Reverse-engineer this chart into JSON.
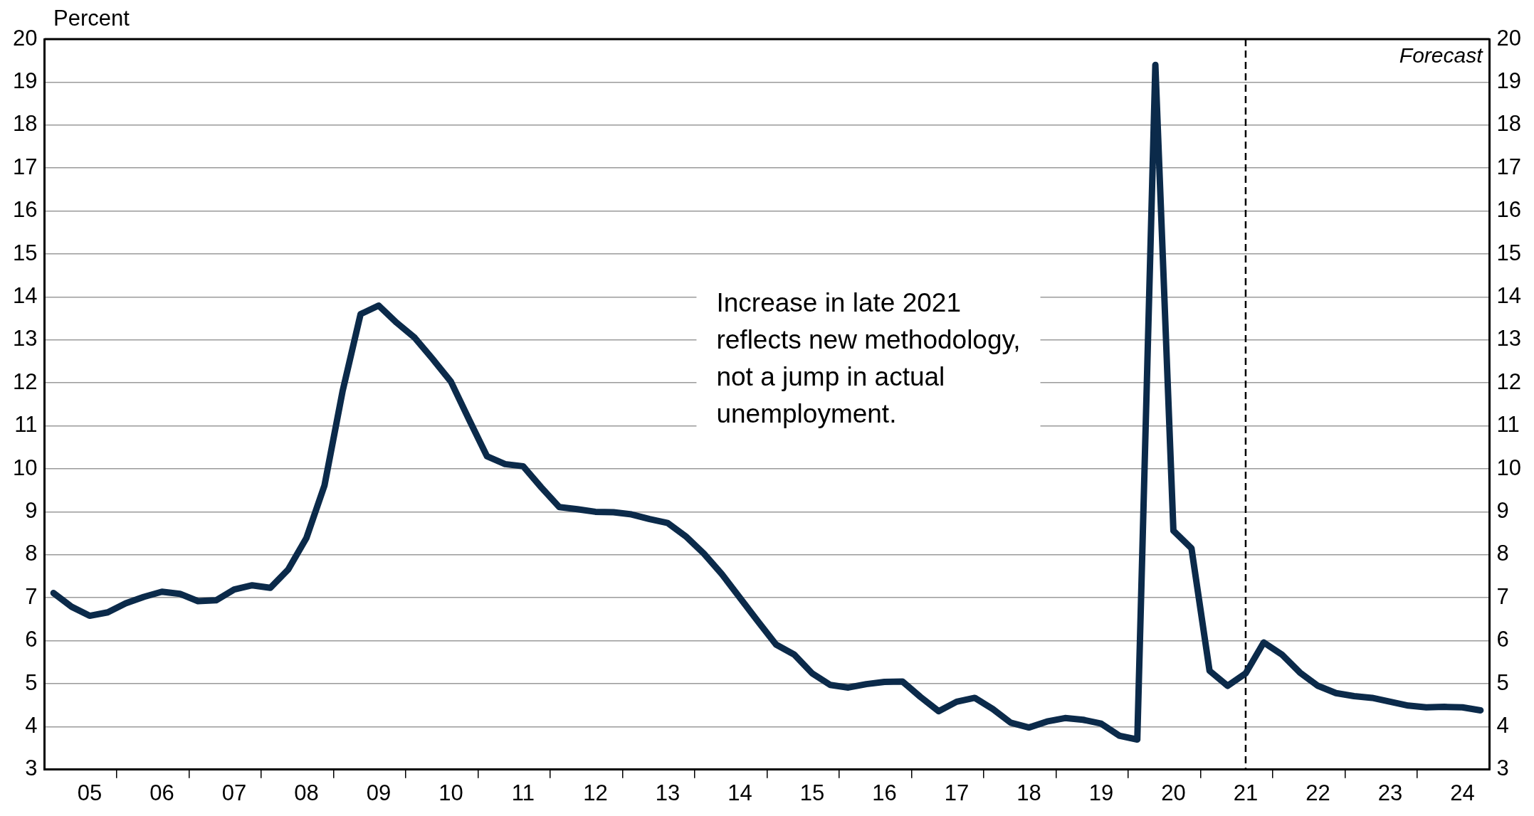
{
  "chart_data": {
    "type": "line",
    "ylabel": "Percent",
    "categories": [
      null,
      null,
      "05",
      null,
      null,
      null,
      "06",
      null,
      null,
      null,
      "07",
      null,
      null,
      null,
      "08",
      null,
      null,
      null,
      "09",
      null,
      null,
      null,
      "10",
      null,
      null,
      null,
      "11",
      null,
      null,
      null,
      "12",
      null,
      null,
      null,
      "13",
      null,
      null,
      null,
      "14",
      null,
      null,
      null,
      "15",
      null,
      null,
      null,
      "16",
      null,
      null,
      null,
      "17",
      null,
      null,
      null,
      "18",
      null,
      null,
      null,
      "19",
      null,
      null,
      null,
      "20",
      null,
      null,
      null,
      "21",
      null,
      null,
      null,
      "22",
      null,
      null,
      null,
      "23",
      null,
      null,
      null,
      "24",
      null
    ],
    "series": [
      {
        "color": "#0b2a4a",
        "values": [
          7.11,
          6.79,
          6.58,
          6.66,
          6.87,
          7.02,
          7.14,
          7.09,
          6.92,
          6.94,
          7.19,
          7.29,
          7.23,
          7.66,
          8.39,
          9.61,
          11.8,
          13.6,
          13.8,
          13.4,
          13.05,
          12.55,
          12.03,
          11.15,
          10.29,
          10.11,
          10.06,
          9.57,
          9.11,
          9.06,
          9.0,
          8.99,
          8.94,
          8.83,
          8.74,
          8.43,
          8.03,
          7.55,
          7.0,
          6.45,
          5.91,
          5.68,
          5.24,
          4.97,
          4.91,
          4.99,
          5.04,
          5.05,
          4.69,
          4.36,
          4.58,
          4.67,
          4.41,
          4.09,
          3.98,
          4.12,
          4.2,
          4.16,
          4.07,
          3.79,
          3.7,
          19.4,
          8.56,
          8.15,
          5.3,
          4.95,
          5.24,
          5.96,
          5.68,
          5.26,
          4.95,
          4.78,
          4.71,
          4.67,
          4.58,
          4.49,
          4.45,
          4.46,
          4.45,
          4.38
        ]
      }
    ],
    "ylim": [
      3,
      20
    ],
    "yticks": [
      3,
      4,
      5,
      6,
      7,
      8,
      9,
      10,
      11,
      12,
      13,
      14,
      15,
      16,
      17,
      18,
      19,
      20
    ],
    "y2lim": [
      3,
      20
    ],
    "y2ticks": [
      3,
      4,
      5,
      6,
      7,
      8,
      9,
      10,
      11,
      12,
      13,
      14,
      15,
      16,
      17,
      18,
      19,
      20
    ],
    "grid": "y",
    "legend": false,
    "marker": "none",
    "line_style": "solid",
    "annotations": [
      "Increase in late 2021\nreflects new methodology,\nnot a jump in actual\nunemployment.",
      "Forecast"
    ]
  }
}
